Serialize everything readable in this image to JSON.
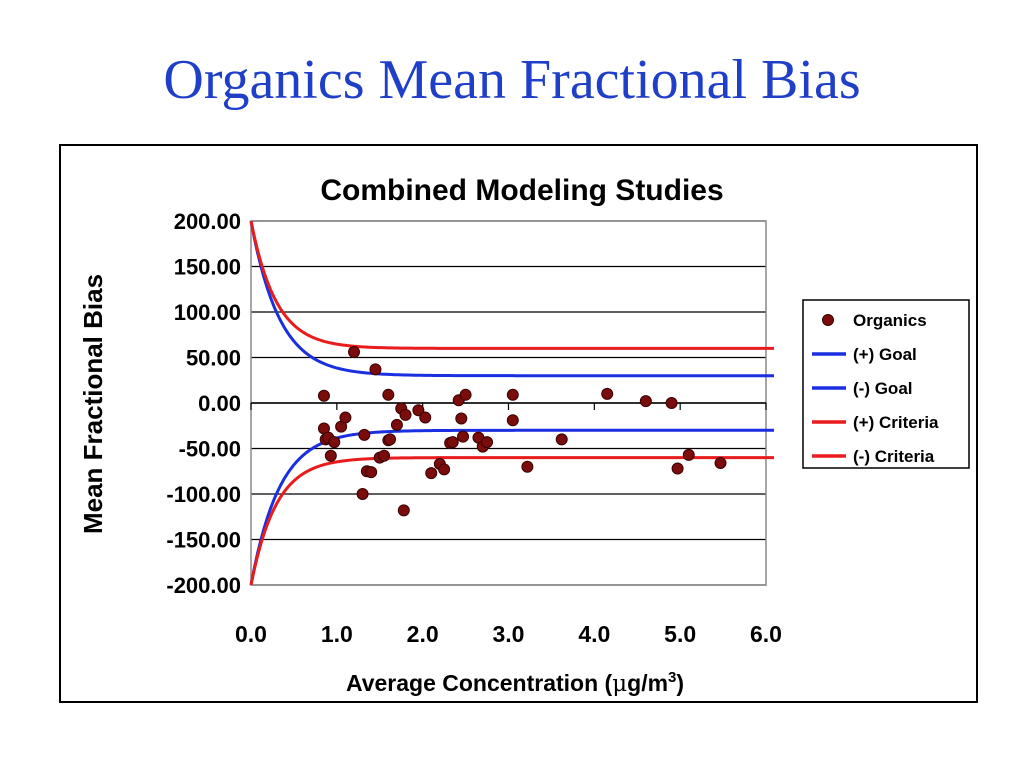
{
  "slide": {
    "title": "Organics Mean Fractional Bias"
  },
  "chart_data": {
    "type": "scatter",
    "title": "Combined Modeling Studies",
    "xlabel": {
      "prefix": "Average Concentration (",
      "mu": "μ",
      "middle": "g/m",
      "sup": "3",
      "suffix": ")"
    },
    "ylabel": "Mean Fractional Bias",
    "xlim": [
      0,
      6
    ],
    "ylim": [
      -200,
      200
    ],
    "x_ticks": [
      "0.0",
      "1.0",
      "2.0",
      "3.0",
      "4.0",
      "5.0",
      "6.0"
    ],
    "y_ticks": [
      "200.00",
      "150.00",
      "100.00",
      "50.00",
      "0.00",
      "-50.00",
      "-100.00",
      "-150.00",
      "-200.00"
    ],
    "grid": {
      "horizontal": true,
      "vertical": false
    },
    "legend_position": "right",
    "colors": {
      "points": "#7a0c0c",
      "goal": "#1a2fe0",
      "criteria": "#e81c1c"
    },
    "series": [
      {
        "name": "Organics",
        "kind": "points",
        "x": [
          0.85,
          0.85,
          0.87,
          0.9,
          0.93,
          0.97,
          1.05,
          1.1,
          1.2,
          1.3,
          1.32,
          1.35,
          1.4,
          1.45,
          1.5,
          1.55,
          1.6,
          1.6,
          1.62,
          1.7,
          1.75,
          1.78,
          1.8,
          1.95,
          2.03,
          2.1,
          2.2,
          2.25,
          2.32,
          2.35,
          2.42,
          2.45,
          2.47,
          2.5,
          2.65,
          2.7,
          2.75,
          3.05,
          3.05,
          3.22,
          3.62,
          4.15,
          4.6,
          4.9,
          4.97,
          5.1,
          5.47
        ],
        "y": [
          8,
          -28,
          -40,
          -38,
          -58,
          -43,
          -26,
          -16,
          56,
          -100,
          -35,
          -75,
          -76,
          37,
          -60,
          -58,
          9,
          -41,
          -40,
          -24,
          -6,
          -118,
          -13,
          -8,
          -16,
          -77,
          -67,
          -73,
          -44,
          -43,
          3,
          -17,
          -37,
          9,
          -38,
          -48,
          -43,
          9,
          -19,
          -70,
          -40,
          10,
          2,
          0,
          -72,
          -57,
          -66
        ]
      },
      {
        "name": "(+) Goal",
        "kind": "line",
        "asymptote": 30
      },
      {
        "name": "(-) Goal",
        "kind": "line",
        "asymptote": -30
      },
      {
        "name": "(+) Criteria",
        "kind": "line",
        "asymptote": 60
      },
      {
        "name": "(-) Criteria",
        "kind": "line",
        "asymptote": -60
      }
    ]
  }
}
